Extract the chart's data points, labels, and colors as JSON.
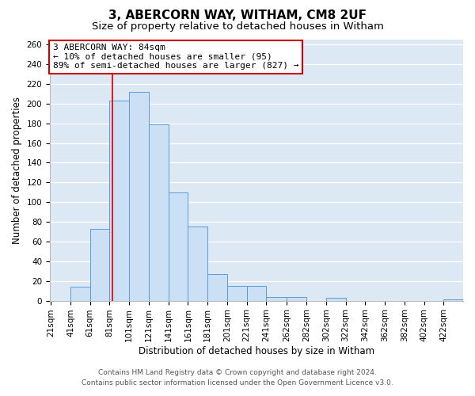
{
  "title": "3, ABERCORN WAY, WITHAM, CM8 2UF",
  "subtitle": "Size of property relative to detached houses in Witham",
  "xlabel": "Distribution of detached houses by size in Witham",
  "ylabel": "Number of detached properties",
  "footer_line1": "Contains HM Land Registry data © Crown copyright and database right 2024.",
  "footer_line2": "Contains public sector information licensed under the Open Government Licence v3.0.",
  "bins": [
    21,
    41,
    61,
    81,
    101,
    121,
    141,
    161,
    181,
    201,
    221,
    241,
    262,
    282,
    302,
    322,
    342,
    362,
    382,
    402,
    422
  ],
  "counts": [
    0,
    14,
    73,
    203,
    212,
    179,
    110,
    75,
    27,
    15,
    15,
    4,
    4,
    0,
    3,
    0,
    0,
    0,
    0,
    0,
    1
  ],
  "bar_color": "#cce0f5",
  "bar_edge_color": "#5b9bd5",
  "red_line_x": 84,
  "annotation_title": "3 ABERCORN WAY: 84sqm",
  "annotation_line1": "← 10% of detached houses are smaller (95)",
  "annotation_line2": "89% of semi-detached houses are larger (827) →",
  "ylim": [
    0,
    265
  ],
  "yticks": [
    0,
    20,
    40,
    60,
    80,
    100,
    120,
    140,
    160,
    180,
    200,
    220,
    240,
    260
  ],
  "bg_color": "#dde8f5",
  "grid_color": "#ffffff",
  "title_fontsize": 11,
  "subtitle_fontsize": 9.5,
  "axis_label_fontsize": 8.5,
  "tick_fontsize": 7.5,
  "footer_fontsize": 6.5,
  "annotation_fontsize": 8
}
